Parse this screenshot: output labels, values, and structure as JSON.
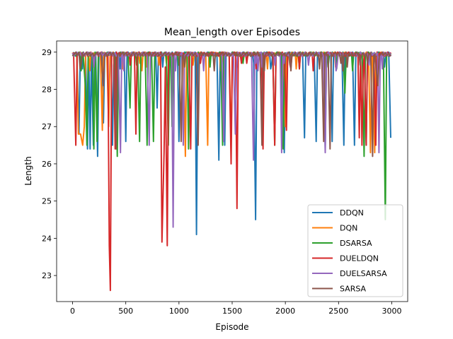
{
  "chart_data": {
    "type": "line",
    "title": "Mean_length over Episodes",
    "xlabel": "Episode",
    "ylabel": "Length",
    "xlim": [
      -150,
      3150
    ],
    "ylim": [
      22.3,
      29.3
    ],
    "xticks": [
      0,
      500,
      1000,
      1500,
      2000,
      2500,
      3000
    ],
    "yticks": [
      23,
      24,
      25,
      26,
      27,
      28,
      29
    ],
    "grid": false,
    "legend_position": "lower-right",
    "baseline": 29.0,
    "series": [
      {
        "name": "DDQN",
        "color": "#1f77b4",
        "dips": [
          [
            60,
            26.8
          ],
          [
            140,
            26.4
          ],
          [
            165,
            26.4
          ],
          [
            195,
            26.5
          ],
          [
            235,
            26.2
          ],
          [
            290,
            27.1
          ],
          [
            375,
            26.5
          ],
          [
            500,
            26.6
          ],
          [
            795,
            27.5
          ],
          [
            1000,
            26.6
          ],
          [
            1165,
            24.1
          ],
          [
            1375,
            26.1
          ],
          [
            1430,
            26.5
          ],
          [
            1720,
            24.5
          ],
          [
            1990,
            26.3
          ],
          [
            2180,
            26.7
          ],
          [
            2290,
            26.6
          ],
          [
            2375,
            26.4
          ],
          [
            2440,
            26.6
          ],
          [
            2550,
            26.5
          ],
          [
            2650,
            26.5
          ],
          [
            2760,
            26.5
          ],
          [
            2990,
            26.7
          ]
        ]
      },
      {
        "name": "DQN",
        "color": "#ff7f0e",
        "dips": [
          [
            55,
            26.8
          ],
          [
            75,
            26.8
          ],
          [
            95,
            26.5
          ],
          [
            110,
            27.0
          ],
          [
            280,
            26.9
          ],
          [
            340,
            27.0
          ],
          [
            1060,
            26.2
          ],
          [
            1270,
            26.5
          ],
          [
            1490,
            26.5
          ],
          [
            2000,
            27.0
          ],
          [
            2800,
            26.3
          ],
          [
            2840,
            26.3
          ]
        ]
      },
      {
        "name": "DSARSA",
        "color": "#2ca02c",
        "dips": [
          [
            120,
            28.1
          ],
          [
            135,
            26.5
          ],
          [
            200,
            26.4
          ],
          [
            230,
            26.6
          ],
          [
            420,
            26.2
          ],
          [
            540,
            27.5
          ],
          [
            630,
            26.6
          ],
          [
            700,
            26.5
          ],
          [
            760,
            26.6
          ],
          [
            900,
            26.5
          ],
          [
            935,
            27.0
          ],
          [
            1090,
            26.4
          ],
          [
            1410,
            26.5
          ],
          [
            1900,
            26.5
          ],
          [
            1980,
            26.4
          ],
          [
            2560,
            27.9
          ],
          [
            2740,
            26.2
          ],
          [
            2940,
            24.5
          ]
        ]
      },
      {
        "name": "DUELDQN",
        "color": "#d62728",
        "dips": [
          [
            30,
            26.5
          ],
          [
            345,
            23.8
          ],
          [
            355,
            22.6
          ],
          [
            400,
            26.4
          ],
          [
            595,
            26.8
          ],
          [
            840,
            23.9
          ],
          [
            860,
            26.3
          ],
          [
            890,
            23.8
          ],
          [
            1110,
            26.4
          ],
          [
            1490,
            26.0
          ],
          [
            1545,
            24.8
          ],
          [
            1790,
            26.4
          ],
          [
            1900,
            26.5
          ],
          [
            2010,
            26.9
          ],
          [
            2695,
            26.7
          ],
          [
            2720,
            26.5
          ],
          [
            2760,
            26.5
          ],
          [
            2850,
            26.5
          ]
        ]
      },
      {
        "name": "DUELSARSA",
        "color": "#9467bd",
        "dips": [
          [
            450,
            26.3
          ],
          [
            720,
            26.5
          ],
          [
            945,
            24.3
          ],
          [
            1040,
            26.5
          ],
          [
            1420,
            26.6
          ],
          [
            1530,
            26.8
          ],
          [
            1700,
            26.1
          ],
          [
            1965,
            26.3
          ],
          [
            2375,
            26.3
          ],
          [
            2880,
            26.3
          ]
        ]
      },
      {
        "name": "SARSA",
        "color": "#8c564b",
        "dips": [
          [
            290,
            28.1
          ],
          [
            410,
            26.4
          ],
          [
            1020,
            26.6
          ],
          [
            1180,
            26.5
          ],
          [
            1780,
            26.5
          ],
          [
            2360,
            26.6
          ],
          [
            2420,
            26.4
          ],
          [
            2820,
            26.2
          ],
          [
            2870,
            28.1
          ]
        ]
      }
    ]
  }
}
